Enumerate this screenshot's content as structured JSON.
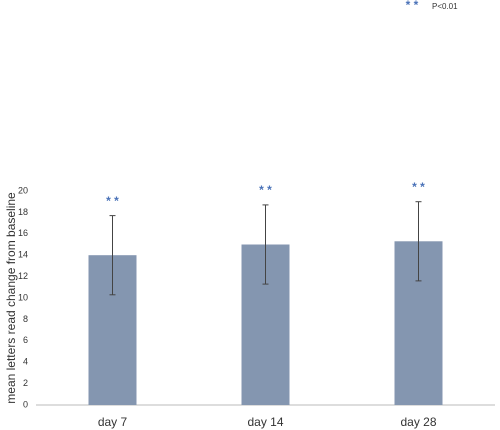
{
  "chart_data": {
    "type": "bar",
    "y_label": "mean letters read change from baseline",
    "categories": [
      "day 7",
      "day 14",
      "day 28"
    ],
    "values": [
      14,
      15,
      15.3
    ],
    "errors": [
      3.7,
      3.7,
      3.7
    ],
    "color": "#8496b0",
    "error_color": "#444444",
    "significance_markers": [
      "* *",
      "* *",
      "* *"
    ],
    "significance_note": {
      "marker": "* *",
      "label": "P<0.01"
    },
    "marker_color": "#4a72b8",
    "ylim": [
      0,
      20
    ],
    "yticks": [
      0,
      2,
      4,
      6,
      8,
      10,
      12,
      14,
      16,
      18,
      20
    ],
    "grid": false
  }
}
